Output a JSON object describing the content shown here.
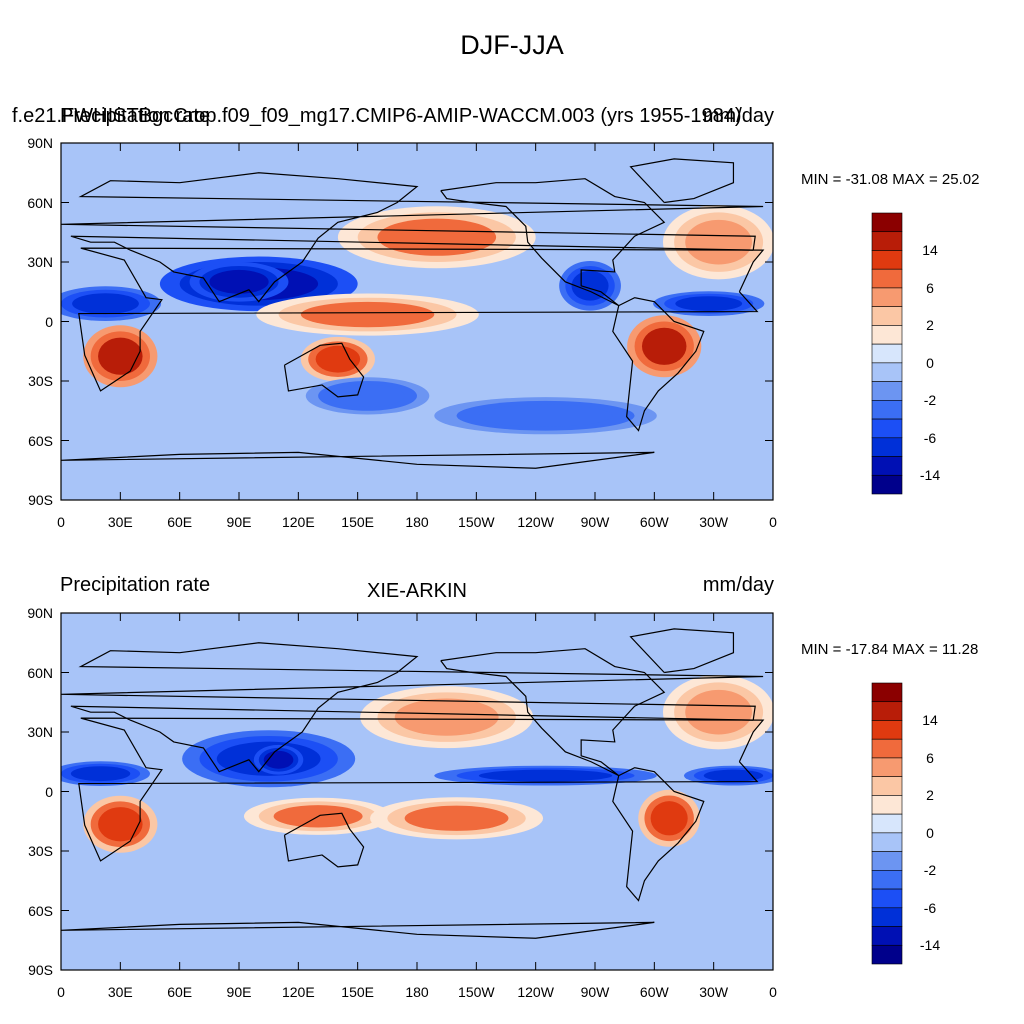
{
  "main_title": "DJF-JJA",
  "color_levels": [
    -14,
    -10,
    -6,
    -4,
    -2,
    -1,
    0,
    1,
    2,
    4,
    6,
    10,
    14
  ],
  "colorbar_tick_labels": [
    "14",
    "6",
    "2",
    "0",
    "-2",
    "-6",
    "-14"
  ],
  "colorbar_colors": [
    "#00008b",
    "#0010b4",
    "#0030d8",
    "#1c4ff5",
    "#3b6ef4",
    "#6c95f2",
    "#a8c4f8",
    "#d7e6fc",
    "#fde7d6",
    "#fbc7a5",
    "#f79a70",
    "#f06a3c",
    "#e03a10",
    "#b81d08",
    "#8b0000"
  ],
  "lat_labels": [
    "90N",
    "60N",
    "30N",
    "0",
    "30S",
    "60S",
    "90S"
  ],
  "lon_labels": [
    "0",
    "30E",
    "60E",
    "90E",
    "120E",
    "150E",
    "180",
    "150W",
    "120W",
    "90W",
    "60W",
    "30W",
    "0"
  ],
  "panels": [
    {
      "left_title_a": "f.e21.FWHISTBgcCrop.f09_f09_mg17.CMIP6-AMIP-WACCM.003 (yrs 1955-1984)",
      "left_title_b": "Precipitation rate",
      "right_title": "mm/day",
      "center_title": "",
      "min_max": "MIN = -31.08 MAX =  25.02"
    },
    {
      "left_title_a": "",
      "left_title_b": "Precipitation rate",
      "right_title": "mm/day",
      "center_title": "XIE-ARKIN",
      "min_max": "MIN = -17.84 MAX =  11.28"
    }
  ],
  "chart_data": [
    {
      "type": "heatmap",
      "title": "f.e21.FWHISTBgcCrop.f09_f09_mg17.CMIP6-AMIP-WACCM.003 (yrs 1955-1984)",
      "variable": "Precipitation rate",
      "units": "mm/day",
      "season_difference": "DJF-JJA",
      "min": -31.08,
      "max": 25.02,
      "xlim": [
        0,
        360
      ],
      "ylim": [
        -90,
        90
      ],
      "anomaly_regions": [
        {
          "lon": [
            60,
            140
          ],
          "lat": [
            8,
            30
          ],
          "value": -14
        },
        {
          "lon": [
            70,
            110
          ],
          "lat": [
            12,
            28
          ],
          "value": -14
        },
        {
          "lon": [
            255,
            280
          ],
          "lat": [
            8,
            28
          ],
          "value": -10
        },
        {
          "lon": [
            0,
            45
          ],
          "lat": [
            2,
            16
          ],
          "value": -10
        },
        {
          "lon": [
            305,
            350
          ],
          "lat": [
            4,
            14
          ],
          "value": -10
        },
        {
          "lon": [
            110,
            200
          ],
          "lat": [
            -5,
            12
          ],
          "value": 6
        },
        {
          "lon": [
            15,
            45
          ],
          "lat": [
            -30,
            -5
          ],
          "value": 14
        },
        {
          "lon": [
            290,
            320
          ],
          "lat": [
            -25,
            0
          ],
          "value": 14
        },
        {
          "lon": [
            125,
            155
          ],
          "lat": [
            -28,
            -10
          ],
          "value": 10
        },
        {
          "lon": [
            150,
            230
          ],
          "lat": [
            30,
            55
          ],
          "value": 6
        },
        {
          "lon": [
            310,
            355
          ],
          "lat": [
            25,
            55
          ],
          "value": 4
        },
        {
          "lon": [
            130,
            180
          ],
          "lat": [
            -45,
            -30
          ],
          "value": -4
        },
        {
          "lon": [
            200,
            290
          ],
          "lat": [
            -55,
            -40
          ],
          "value": -4
        }
      ]
    },
    {
      "type": "heatmap",
      "title": "XIE-ARKIN",
      "variable": "Precipitation rate",
      "units": "mm/day",
      "season_difference": "DJF-JJA",
      "min": -17.84,
      "max": 11.28,
      "xlim": [
        0,
        360
      ],
      "ylim": [
        -90,
        90
      ],
      "anomaly_regions": [
        {
          "lon": [
            70,
            140
          ],
          "lat": [
            5,
            28
          ],
          "value": -10
        },
        {
          "lon": [
            100,
            120
          ],
          "lat": [
            10,
            22
          ],
          "value": -14
        },
        {
          "lon": [
            200,
            290
          ],
          "lat": [
            4,
            12
          ],
          "value": -10
        },
        {
          "lon": [
            0,
            40
          ],
          "lat": [
            4,
            14
          ],
          "value": -10
        },
        {
          "lon": [
            320,
            360
          ],
          "lat": [
            4,
            12
          ],
          "value": -10
        },
        {
          "lon": [
            15,
            45
          ],
          "lat": [
            -28,
            -5
          ],
          "value": 10
        },
        {
          "lon": [
            295,
            320
          ],
          "lat": [
            -25,
            -2
          ],
          "value": 10
        },
        {
          "lon": [
            100,
            160
          ],
          "lat": [
            -20,
            -5
          ],
          "value": 6
        },
        {
          "lon": [
            165,
            235
          ],
          "lat": [
            -22,
            -5
          ],
          "value": 6
        },
        {
          "lon": [
            160,
            230
          ],
          "lat": [
            25,
            50
          ],
          "value": 4
        },
        {
          "lon": [
            310,
            355
          ],
          "lat": [
            25,
            55
          ],
          "value": 4
        }
      ]
    }
  ]
}
